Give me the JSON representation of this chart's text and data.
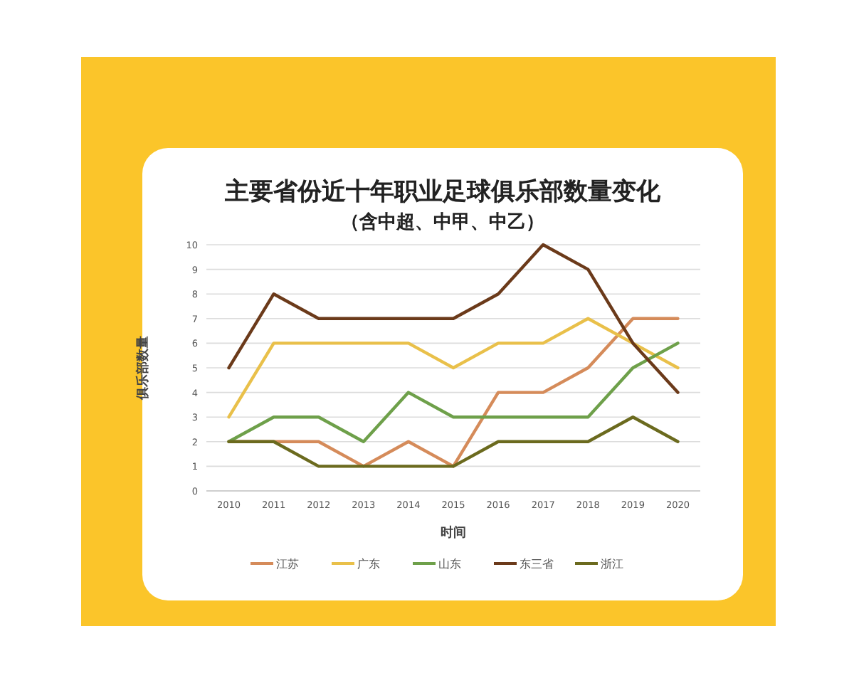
{
  "chart_data": {
    "type": "line",
    "title": "主要省份近十年职业足球俱乐部数量变化",
    "subtitle": "（含中超、中甲、中乙）",
    "xlabel": "时间",
    "ylabel": "俱乐部数量",
    "categories": [
      "2010",
      "2011",
      "2012",
      "2013",
      "2014",
      "2015",
      "2016",
      "2017",
      "2018",
      "2019",
      "2020"
    ],
    "series": [
      {
        "name": "江苏",
        "color": "#d58b5a",
        "values": [
          2,
          2,
          2,
          1,
          2,
          1,
          4,
          4,
          5,
          7,
          7
        ]
      },
      {
        "name": "广东",
        "color": "#e9c04a",
        "values": [
          3,
          6,
          6,
          6,
          6,
          5,
          6,
          6,
          7,
          6,
          5
        ]
      },
      {
        "name": "山东",
        "color": "#6ea04a",
        "values": [
          2,
          3,
          3,
          2,
          4,
          3,
          3,
          3,
          3,
          5,
          6
        ]
      },
      {
        "name": "东三省",
        "color": "#6b3a1a",
        "values": [
          5,
          8,
          7,
          7,
          7,
          7,
          8,
          10,
          9,
          6,
          4
        ]
      },
      {
        "name": "浙江",
        "color": "#6b6a1e",
        "values": [
          2,
          2,
          1,
          1,
          1,
          1,
          2,
          2,
          2,
          3,
          2
        ]
      }
    ],
    "ylim": [
      0,
      10
    ],
    "yticks": [
      0,
      1,
      2,
      3,
      4,
      5,
      6,
      7,
      8,
      9,
      10
    ],
    "grid": "y",
    "legend": "bottom"
  }
}
